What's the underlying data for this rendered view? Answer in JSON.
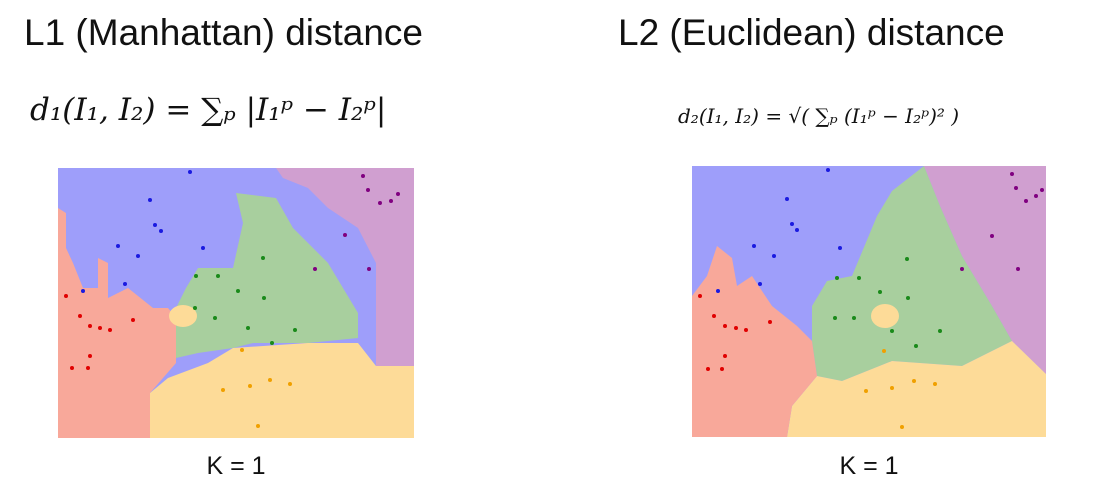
{
  "panels": [
    {
      "title": "L1 (Manhattan) distance",
      "formula": "d₁(I₁, I₂) = ∑ₚ |I₁ᵖ − I₂ᵖ|",
      "caption": "K = 1"
    },
    {
      "title": "L2 (Euclidean) distance",
      "formula": "d₂(I₁, I₂) = √( ∑ₚ (I₁ᵖ − I₂ᵖ)² )",
      "caption": "K = 1"
    }
  ]
}
